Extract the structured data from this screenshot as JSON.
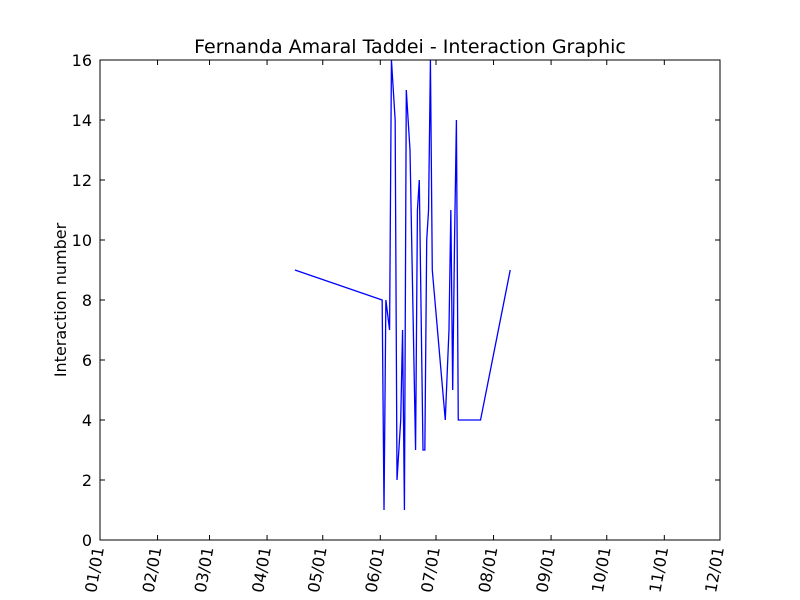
{
  "chart_data": {
    "type": "line",
    "title": "Fernanda Amaral Taddei - Interaction Graphic",
    "xlabel": "",
    "ylabel": "Interaction number",
    "xlim": [
      "01/01",
      "12/01"
    ],
    "ylim": [
      0,
      16
    ],
    "x_ticks": [
      "01/01",
      "02/01",
      "03/01",
      "04/01",
      "05/01",
      "06/01",
      "07/01",
      "08/01",
      "09/01",
      "10/01",
      "11/01",
      "12/01"
    ],
    "y_ticks": [
      "0",
      "2",
      "4",
      "6",
      "8",
      "10",
      "12",
      "14",
      "16"
    ],
    "grid": false,
    "line_color": "#0000ff",
    "series": [
      {
        "x": [
          "04/16",
          "06/02",
          "06/03",
          "06/04",
          "06/06",
          "06/07",
          "06/09",
          "06/10",
          "06/12",
          "06/13",
          "06/14",
          "06/15",
          "06/16",
          "06/17",
          "06/20",
          "06/21",
          "06/22",
          "06/24",
          "06/25",
          "06/26",
          "06/27",
          "06/28",
          "06/29",
          "07/06",
          "07/08",
          "07/09",
          "07/10",
          "07/11",
          "07/12",
          "07/13",
          "07/14",
          "07/20",
          "07/22",
          "07/23",
          "07/24",
          "07/25",
          "08/10"
        ],
        "y": [
          9,
          8,
          1,
          8,
          7,
          16,
          14,
          2,
          4,
          7,
          1,
          15,
          14,
          13,
          3,
          11,
          12,
          3,
          3,
          10,
          11,
          16,
          9,
          4,
          7,
          11,
          5,
          10,
          14,
          4,
          4,
          4,
          4,
          4,
          4,
          4,
          9
        ]
      }
    ]
  }
}
